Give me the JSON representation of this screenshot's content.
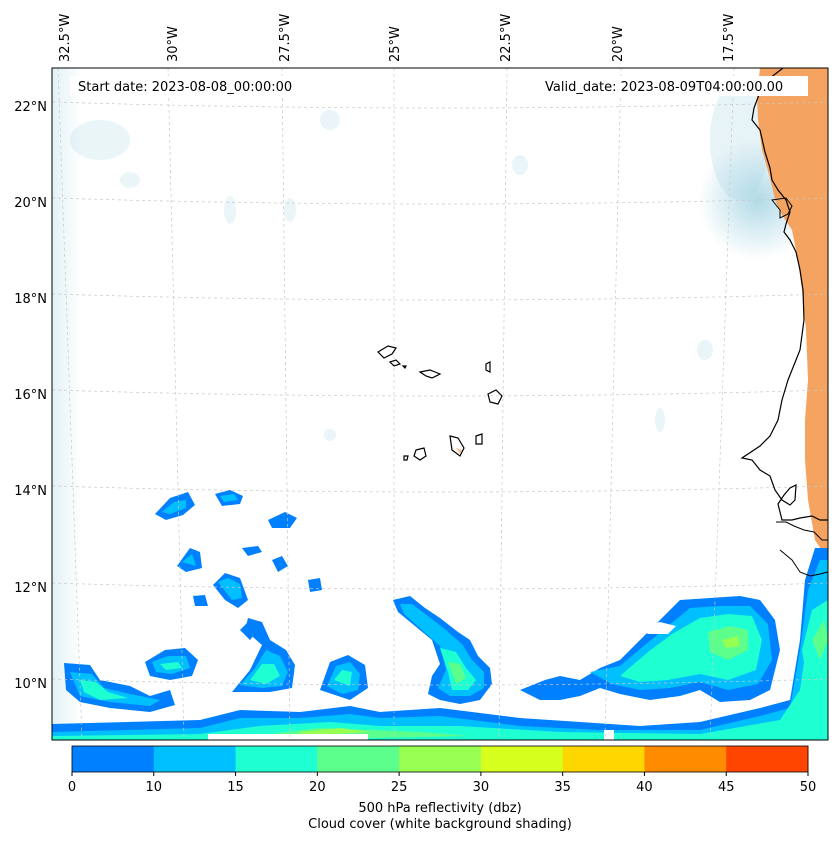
{
  "title_left": "Start date: 2023-08-08_00:00:00",
  "title_right": "Valid_date: 2023-08-09T04:00:00.00",
  "lon_labels": [
    "32.5°W",
    "30°W",
    "27.5°W",
    "25°W",
    "22.5°W",
    "20°W",
    "17.5°W"
  ],
  "lat_labels": [
    "22°N",
    "20°N",
    "18°N",
    "16°N",
    "14°N",
    "12°N",
    "10°N"
  ],
  "colorbar": {
    "ticks": [
      "0",
      "10",
      "15",
      "20",
      "25",
      "30",
      "35",
      "40",
      "45",
      "50"
    ],
    "colors": [
      "#0080ff",
      "#00bfff",
      "#1effd2",
      "#5cff8c",
      "#97ff52",
      "#d6ff1e",
      "#ffd700",
      "#ff8c00",
      "#ff4500"
    ],
    "label_line1": "500 hPa reflectivity (dbz)",
    "label_line2": "Cloud cover (white background shading)"
  },
  "colors": {
    "land_warm": "#f4a460",
    "haze_blue": "#add8e6",
    "coast": "#000000",
    "grid": "#c8c8c8"
  }
}
